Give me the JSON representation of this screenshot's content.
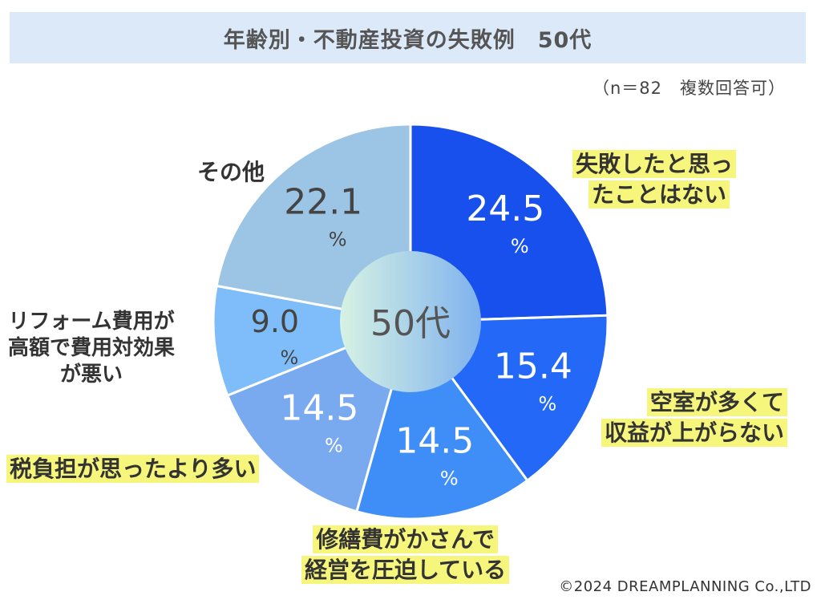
{
  "title": "年齢別・不動産投資の失敗例　50代",
  "note": "（n＝82　複数回答可）",
  "copyright": "©2024 DREAMPLANNING Co.,LTD",
  "colors": {
    "title_bg": "#dbe9f8",
    "highlight": "#f6f57c",
    "center_gradient_start": "#d6f2e4",
    "center_gradient_end": "#7fb2ee"
  },
  "chart_data": {
    "type": "pie",
    "center_label": "50代",
    "unit": "%",
    "slices": [
      {
        "label": "失敗したと思ったことはない",
        "value_text": "24.5",
        "value": 24.5,
        "color": "#1850ee",
        "text_color": "#ffffff"
      },
      {
        "label": "空室が多くて収益が上がらない",
        "value_text": "15.4",
        "value": 15.4,
        "color": "#2468f7",
        "text_color": "#ffffff"
      },
      {
        "label": "修繕費がかさんで経営を圧迫している",
        "value_text": "14.5",
        "value": 14.5,
        "color": "#3f8ef8",
        "text_color": "#ffffff"
      },
      {
        "label": "税負担が思ったより多い",
        "value_text": "14.5",
        "value": 14.5,
        "color": "#79a9ef",
        "text_color": "#ffffff"
      },
      {
        "label": "リフォーム費用が高額で費用対効果が悪い",
        "value_text": "9.0",
        "value": 9.0,
        "color": "#7ebdf9",
        "text_color": "#444444"
      },
      {
        "label": "その他",
        "value_text": "22.1",
        "value": 22.1,
        "color": "#9cc4e4",
        "text_color": "#444444"
      }
    ]
  },
  "labels": {
    "slice0": [
      "失敗したと思っ",
      "たことはない"
    ],
    "slice1": [
      "空室が多くて",
      "収益が上がらない"
    ],
    "slice2": [
      "修繕費がかさんで",
      "経営を圧迫している"
    ],
    "slice3": [
      "税負担が思ったより多い"
    ],
    "slice4": [
      "リフォーム費用が",
      "高額で費用対効果",
      "が悪い"
    ],
    "slice5": [
      "その他"
    ]
  }
}
